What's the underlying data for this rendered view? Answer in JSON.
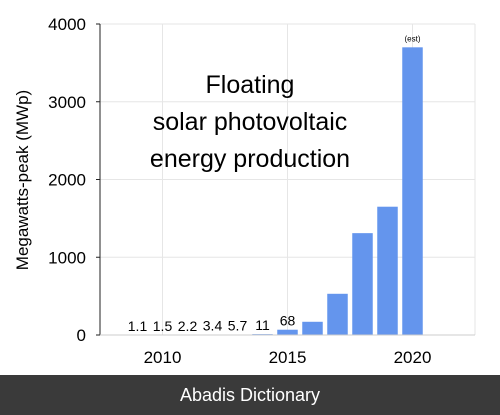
{
  "chart_data": {
    "type": "bar",
    "title_lines": [
      "Floating",
      "solar photovoltaic",
      "energy production"
    ],
    "xlabel": "",
    "ylabel": "Megawatts-peak (MWp)",
    "x": [
      2008,
      2009,
      2010,
      2011,
      2012,
      2013,
      2014,
      2015,
      2016,
      2017,
      2018,
      2019,
      2020
    ],
    "values": [
      0,
      1.1,
      1.5,
      2.2,
      3.4,
      5.7,
      11,
      68,
      170,
      530,
      1310,
      1650,
      3700
    ],
    "data_labels": [
      "",
      "1.1",
      "1.5",
      "2.2",
      "3.4",
      "5.7",
      "11",
      "68",
      "",
      "",
      "",
      "",
      "(est)"
    ],
    "x_ticks": [
      "2010",
      "2015",
      "2020"
    ],
    "x_tick_values": [
      2010,
      2015,
      2020
    ],
    "y_ticks": [
      "0",
      "1000",
      "2000",
      "3000",
      "4000"
    ],
    "y_tick_values": [
      0,
      1000,
      2000,
      3000,
      4000
    ],
    "ylim": [
      0,
      4000
    ],
    "xlim": [
      2007.5,
      2022.5
    ],
    "grid": true,
    "bar_color": "#6495ed",
    "grid_color": "#e6e6e6"
  },
  "footer": {
    "text": "Abadis Dictionary"
  }
}
